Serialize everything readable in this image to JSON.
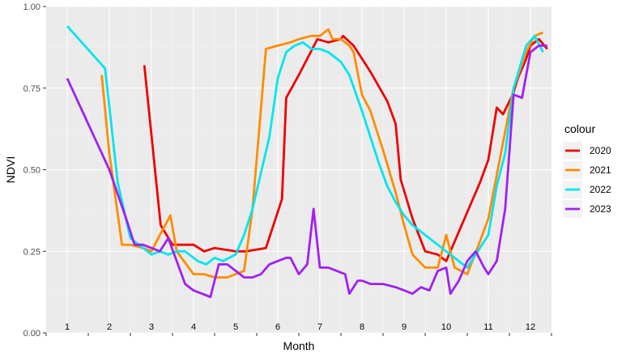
{
  "chart_data": {
    "type": "line",
    "xlabel": "Month",
    "ylabel": "NDVI",
    "xlim": [
      0.5,
      12.5
    ],
    "ylim": [
      0,
      1
    ],
    "yticks": [
      0,
      0.25,
      0.5,
      0.75,
      1
    ],
    "ytick_labels": [
      "0.00",
      "0.25",
      "0.50",
      "0.75",
      "1.00"
    ],
    "xticks": [
      1,
      2,
      3,
      4,
      5,
      6,
      7,
      8,
      9,
      10,
      11,
      12
    ],
    "xtick_labels": [
      "1",
      "2",
      "3",
      "4",
      "5",
      "6",
      "7",
      "8",
      "9",
      "10",
      "11",
      "12"
    ],
    "grid": true,
    "panel_background": "#ebebeb",
    "legend_title": "colour",
    "legend_position": "right",
    "series": [
      {
        "name": "2020",
        "color": "#ee0000",
        "x": [
          2.83,
          3.22,
          3.5,
          4.0,
          4.25,
          4.5,
          5.0,
          5.25,
          5.72,
          6.1,
          6.2,
          6.5,
          6.94,
          7.2,
          7.5,
          7.55,
          7.8,
          8.2,
          8.6,
          8.8,
          8.92,
          9.2,
          9.5,
          9.8,
          10.0,
          10.2,
          10.5,
          10.8,
          11.0,
          11.2,
          11.35,
          11.58,
          11.7,
          11.9,
          12.0,
          12.2,
          12.4
        ],
        "y": [
          0.82,
          0.33,
          0.27,
          0.27,
          0.25,
          0.26,
          0.25,
          0.25,
          0.26,
          0.41,
          0.72,
          0.79,
          0.9,
          0.89,
          0.9,
          0.91,
          0.88,
          0.8,
          0.71,
          0.64,
          0.47,
          0.35,
          0.25,
          0.24,
          0.22,
          0.28,
          0.37,
          0.46,
          0.53,
          0.69,
          0.67,
          0.73,
          0.78,
          0.84,
          0.88,
          0.9,
          0.87
        ]
      },
      {
        "name": "2021",
        "color": "#ff8c00",
        "x": [
          1.82,
          2.0,
          2.3,
          2.5,
          2.8,
          3.0,
          3.2,
          3.45,
          3.6,
          4.0,
          4.25,
          4.5,
          4.8,
          5.0,
          5.2,
          5.4,
          5.72,
          6.0,
          6.3,
          6.5,
          6.8,
          7.0,
          7.2,
          7.3,
          7.5,
          7.7,
          7.8,
          8.0,
          8.2,
          8.5,
          8.8,
          9.0,
          9.2,
          9.5,
          9.8,
          10.0,
          10.2,
          10.5,
          10.8,
          11.0,
          11.3,
          11.6,
          11.9,
          12.1,
          12.3
        ],
        "y": [
          0.79,
          0.55,
          0.27,
          0.27,
          0.26,
          0.25,
          0.3,
          0.36,
          0.25,
          0.18,
          0.18,
          0.17,
          0.17,
          0.18,
          0.19,
          0.38,
          0.87,
          0.88,
          0.89,
          0.9,
          0.91,
          0.91,
          0.93,
          0.9,
          0.9,
          0.88,
          0.86,
          0.73,
          0.68,
          0.56,
          0.43,
          0.33,
          0.24,
          0.2,
          0.2,
          0.3,
          0.2,
          0.18,
          0.28,
          0.35,
          0.55,
          0.75,
          0.86,
          0.91,
          0.92
        ]
      },
      {
        "name": "2022",
        "color": "#00e5ee",
        "x": [
          1.0,
          1.9,
          2.2,
          2.5,
          2.7,
          3.0,
          3.2,
          3.4,
          3.6,
          3.8,
          4.0,
          4.1,
          4.3,
          4.5,
          4.7,
          5.0,
          5.2,
          5.4,
          5.8,
          6.0,
          6.2,
          6.4,
          6.6,
          6.8,
          7.0,
          7.2,
          7.5,
          7.7,
          8.0,
          8.2,
          8.4,
          8.6,
          8.8,
          9.0,
          9.2,
          9.5,
          9.8,
          10.0,
          10.2,
          10.5,
          10.8,
          11.0,
          11.2,
          11.4,
          11.6,
          11.9,
          12.1,
          12.3
        ],
        "y": [
          0.94,
          0.81,
          0.46,
          0.29,
          0.27,
          0.24,
          0.25,
          0.24,
          0.25,
          0.25,
          0.23,
          0.22,
          0.21,
          0.23,
          0.22,
          0.24,
          0.3,
          0.38,
          0.6,
          0.78,
          0.86,
          0.88,
          0.89,
          0.87,
          0.87,
          0.86,
          0.83,
          0.79,
          0.68,
          0.6,
          0.52,
          0.45,
          0.4,
          0.36,
          0.33,
          0.3,
          0.27,
          0.25,
          0.23,
          0.2,
          0.26,
          0.3,
          0.45,
          0.55,
          0.75,
          0.88,
          0.91,
          0.86
        ]
      },
      {
        "name": "2023",
        "color": "#a020f0",
        "x": [
          1.0,
          1.5,
          2.0,
          2.4,
          2.6,
          2.8,
          3.0,
          3.2,
          3.4,
          3.6,
          3.8,
          4.0,
          4.2,
          4.4,
          4.6,
          4.8,
          5.0,
          5.2,
          5.4,
          5.6,
          5.8,
          6.0,
          6.2,
          6.3,
          6.5,
          6.7,
          6.85,
          7.0,
          7.2,
          7.4,
          7.6,
          7.7,
          7.9,
          8.0,
          8.2,
          8.5,
          8.8,
          9.0,
          9.2,
          9.4,
          9.6,
          9.8,
          10.0,
          10.1,
          10.3,
          10.5,
          10.7,
          10.9,
          11.0,
          11.2,
          11.4,
          11.6,
          11.8,
          12.0,
          12.2,
          12.4
        ],
        "y": [
          0.78,
          0.64,
          0.5,
          0.35,
          0.27,
          0.27,
          0.26,
          0.25,
          0.29,
          0.22,
          0.15,
          0.13,
          0.12,
          0.11,
          0.21,
          0.21,
          0.19,
          0.17,
          0.17,
          0.18,
          0.21,
          0.22,
          0.23,
          0.23,
          0.18,
          0.21,
          0.38,
          0.2,
          0.2,
          0.19,
          0.18,
          0.12,
          0.16,
          0.16,
          0.15,
          0.15,
          0.14,
          0.13,
          0.12,
          0.14,
          0.13,
          0.19,
          0.2,
          0.12,
          0.16,
          0.22,
          0.25,
          0.2,
          0.18,
          0.22,
          0.38,
          0.73,
          0.72,
          0.86,
          0.88,
          0.88
        ]
      }
    ]
  }
}
